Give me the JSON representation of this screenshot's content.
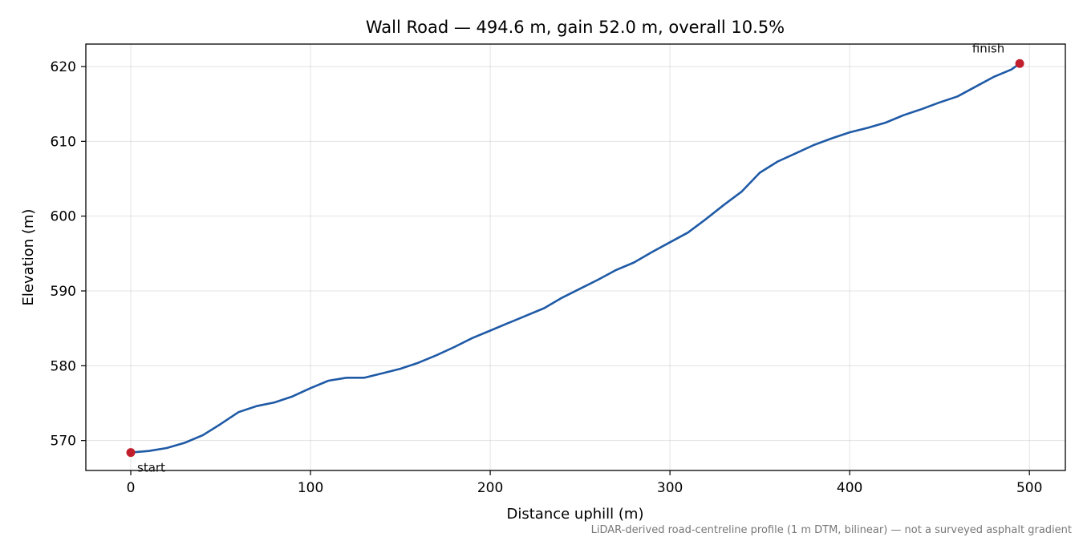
{
  "chart_data": {
    "type": "line",
    "title": "Wall Road — 494.6 m, gain 52.0 m, overall 10.5%",
    "xlabel": "Distance uphill (m)",
    "ylabel": "Elevation (m)",
    "xlim": [
      -25,
      520
    ],
    "ylim": [
      566,
      623
    ],
    "xticks": [
      0,
      100,
      200,
      300,
      400,
      500
    ],
    "yticks": [
      570,
      580,
      590,
      600,
      610,
      620
    ],
    "grid": true,
    "line_color": "#1f5aa6",
    "marker_color": "#c21f2e",
    "series": [
      {
        "points": [
          [
            0,
            568.4
          ],
          [
            10,
            568.6
          ],
          [
            20,
            569.0
          ],
          [
            30,
            569.7
          ],
          [
            40,
            570.7
          ],
          [
            50,
            572.2
          ],
          [
            60,
            573.8
          ],
          [
            70,
            574.6
          ],
          [
            80,
            575.1
          ],
          [
            90,
            575.9
          ],
          [
            100,
            577.0
          ],
          [
            110,
            578.0
          ],
          [
            120,
            578.4
          ],
          [
            130,
            578.4
          ],
          [
            140,
            579.0
          ],
          [
            150,
            579.6
          ],
          [
            160,
            580.4
          ],
          [
            170,
            581.4
          ],
          [
            180,
            582.5
          ],
          [
            190,
            583.7
          ],
          [
            200,
            584.7
          ],
          [
            210,
            585.7
          ],
          [
            220,
            586.7
          ],
          [
            230,
            587.7
          ],
          [
            240,
            589.1
          ],
          [
            250,
            590.3
          ],
          [
            260,
            591.5
          ],
          [
            270,
            592.8
          ],
          [
            280,
            593.8
          ],
          [
            290,
            595.2
          ],
          [
            300,
            596.5
          ],
          [
            310,
            597.8
          ],
          [
            320,
            599.6
          ],
          [
            330,
            601.5
          ],
          [
            340,
            603.3
          ],
          [
            350,
            605.8
          ],
          [
            360,
            607.3
          ],
          [
            370,
            608.4
          ],
          [
            380,
            609.5
          ],
          [
            390,
            610.4
          ],
          [
            400,
            611.2
          ],
          [
            410,
            611.8
          ],
          [
            420,
            612.5
          ],
          [
            430,
            613.5
          ],
          [
            440,
            614.3
          ],
          [
            450,
            615.2
          ],
          [
            460,
            616.0
          ],
          [
            470,
            617.3
          ],
          [
            480,
            618.6
          ],
          [
            490,
            619.6
          ],
          [
            494.6,
            620.4
          ]
        ]
      }
    ],
    "annotations": [
      {
        "text": "start",
        "x": 0,
        "y": 568.4
      },
      {
        "text": "finish",
        "x": 494.6,
        "y": 620.4
      }
    ],
    "footnote": "LiDAR-derived road-centreline profile (1 m DTM, bilinear) — not a surveyed asphalt gradient"
  }
}
